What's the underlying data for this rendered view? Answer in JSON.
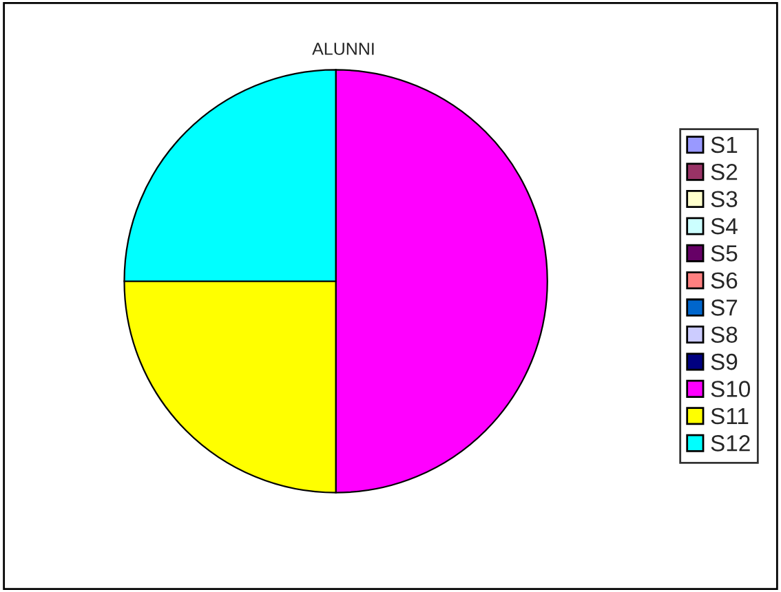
{
  "chart_data": {
    "type": "pie",
    "title": "ALUNNI",
    "categories": [
      "S1",
      "S2",
      "S3",
      "S4",
      "S5",
      "S6",
      "S7",
      "S8",
      "S9",
      "S10",
      "S11",
      "S12"
    ],
    "values": [
      0,
      0,
      0,
      0,
      0,
      0,
      0,
      0,
      0,
      50,
      25,
      25
    ],
    "colors": [
      "#9999ff",
      "#993366",
      "#ffffcc",
      "#ccffff",
      "#660066",
      "#ff8080",
      "#0066cc",
      "#ccccff",
      "#000080",
      "#ff00ff",
      "#ffff00",
      "#00ffff"
    ],
    "legend": "right"
  }
}
